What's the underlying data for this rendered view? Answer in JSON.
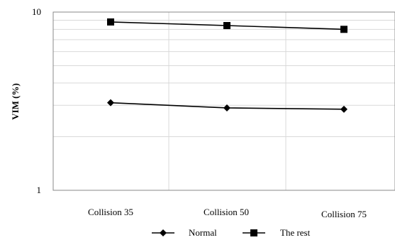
{
  "chart_data": {
    "type": "line",
    "y_scale": "log",
    "ylim": [
      1,
      10
    ],
    "ylabel": "VIM (%)",
    "xlabel": "",
    "title": "",
    "y_ticks": [
      "1",
      "10"
    ],
    "categories": [
      "Collision 35",
      "Collision 50",
      "Collision 75"
    ],
    "grid": true,
    "legend_position": "bottom",
    "series": [
      {
        "name": "Normal",
        "values": [
          3.1,
          2.9,
          2.85
        ],
        "marker": "diamond",
        "color": "#000000"
      },
      {
        "name": "The rest",
        "values": [
          8.8,
          8.4,
          8.0
        ],
        "marker": "square",
        "color": "#000000"
      }
    ]
  }
}
